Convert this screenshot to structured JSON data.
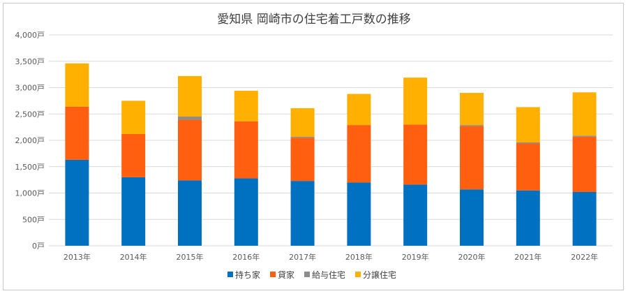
{
  "chart_data": {
    "type": "bar",
    "stacked": true,
    "title": "愛知県 岡崎市の住宅着工戸数の推移",
    "categories": [
      "2013年",
      "2014年",
      "2015年",
      "2016年",
      "2017年",
      "2018年",
      "2019年",
      "2020年",
      "2021年",
      "2022年"
    ],
    "series": [
      {
        "name": "持ち家",
        "color": "#0070c0",
        "values": [
          1630,
          1300,
          1240,
          1280,
          1230,
          1200,
          1160,
          1070,
          1050,
          1020
        ]
      },
      {
        "name": "貸家",
        "color": "#ff5f0f",
        "values": [
          1010,
          820,
          1150,
          1080,
          820,
          1090,
          1140,
          1200,
          890,
          1050
        ]
      },
      {
        "name": "給与住宅",
        "color": "#8c8c8c",
        "values": [
          0,
          0,
          60,
          0,
          20,
          0,
          0,
          20,
          20,
          20
        ]
      },
      {
        "name": "分譲住宅",
        "color": "#ffb000",
        "values": [
          820,
          630,
          770,
          580,
          540,
          590,
          890,
          610,
          670,
          820
        ]
      }
    ],
    "ylim": [
      0,
      4000
    ],
    "yticks": [
      "0戸",
      "500戸",
      "1,000戸",
      "1,500戸",
      "2,000戸",
      "2,500戸",
      "3,000戸",
      "3,500戸",
      "4,000戸"
    ],
    "ytick_values": [
      0,
      500,
      1000,
      1500,
      2000,
      2500,
      3000,
      3500,
      4000
    ],
    "grid": true,
    "legend_position": "bottom"
  }
}
